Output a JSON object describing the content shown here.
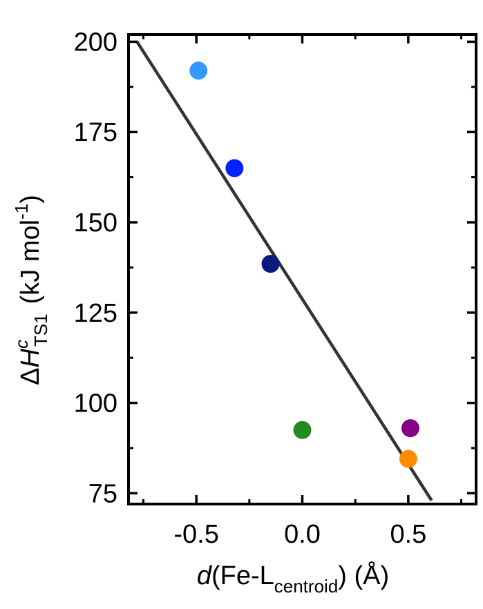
{
  "chart_data": {
    "type": "scatter",
    "xlim": [
      -0.82,
      0.82
    ],
    "ylim": [
      72,
      202
    ],
    "x_ticks": [
      -0.5,
      0.0,
      0.5
    ],
    "x_tick_labels": [
      "-0.5",
      "0.0",
      "0.5"
    ],
    "x_minor_ticks": [
      -0.75,
      -0.25,
      0.25,
      0.75
    ],
    "y_ticks": [
      75,
      100,
      125,
      150,
      175,
      200
    ],
    "y_tick_labels": [
      "75",
      "100",
      "125",
      "150",
      "175",
      "200"
    ],
    "y_minor_ticks": [
      87.5,
      112.5,
      137.5,
      162.5,
      187.5
    ],
    "xlabel": {
      "italic": "d",
      "open": "(Fe-L",
      "subscript": "centroid",
      "close": ") (Å)"
    },
    "ylabel": {
      "prefix": "Δ",
      "italic": "H",
      "superscript": "c",
      "subscript": "TS1",
      "unit_open": "(kJ mol",
      "unit_superscript": "-1",
      "unit_close": ")"
    },
    "grid": false,
    "legend": "none",
    "points": [
      {
        "x": -0.49,
        "y": 192,
        "color": "#3399ff"
      },
      {
        "x": -0.32,
        "y": 165,
        "color": "#0022ff"
      },
      {
        "x": -0.15,
        "y": 138.5,
        "color": "#0a1a80"
      },
      {
        "x": 0.0,
        "y": 92.5,
        "color": "#228b22"
      },
      {
        "x": 0.51,
        "y": 93,
        "color": "#880088"
      },
      {
        "x": 0.5,
        "y": 84.5,
        "color": "#ff8c00"
      }
    ],
    "fit_line": {
      "x": [
        -0.78,
        0.61
      ],
      "y": [
        200,
        73
      ],
      "color": "#333333"
    }
  }
}
